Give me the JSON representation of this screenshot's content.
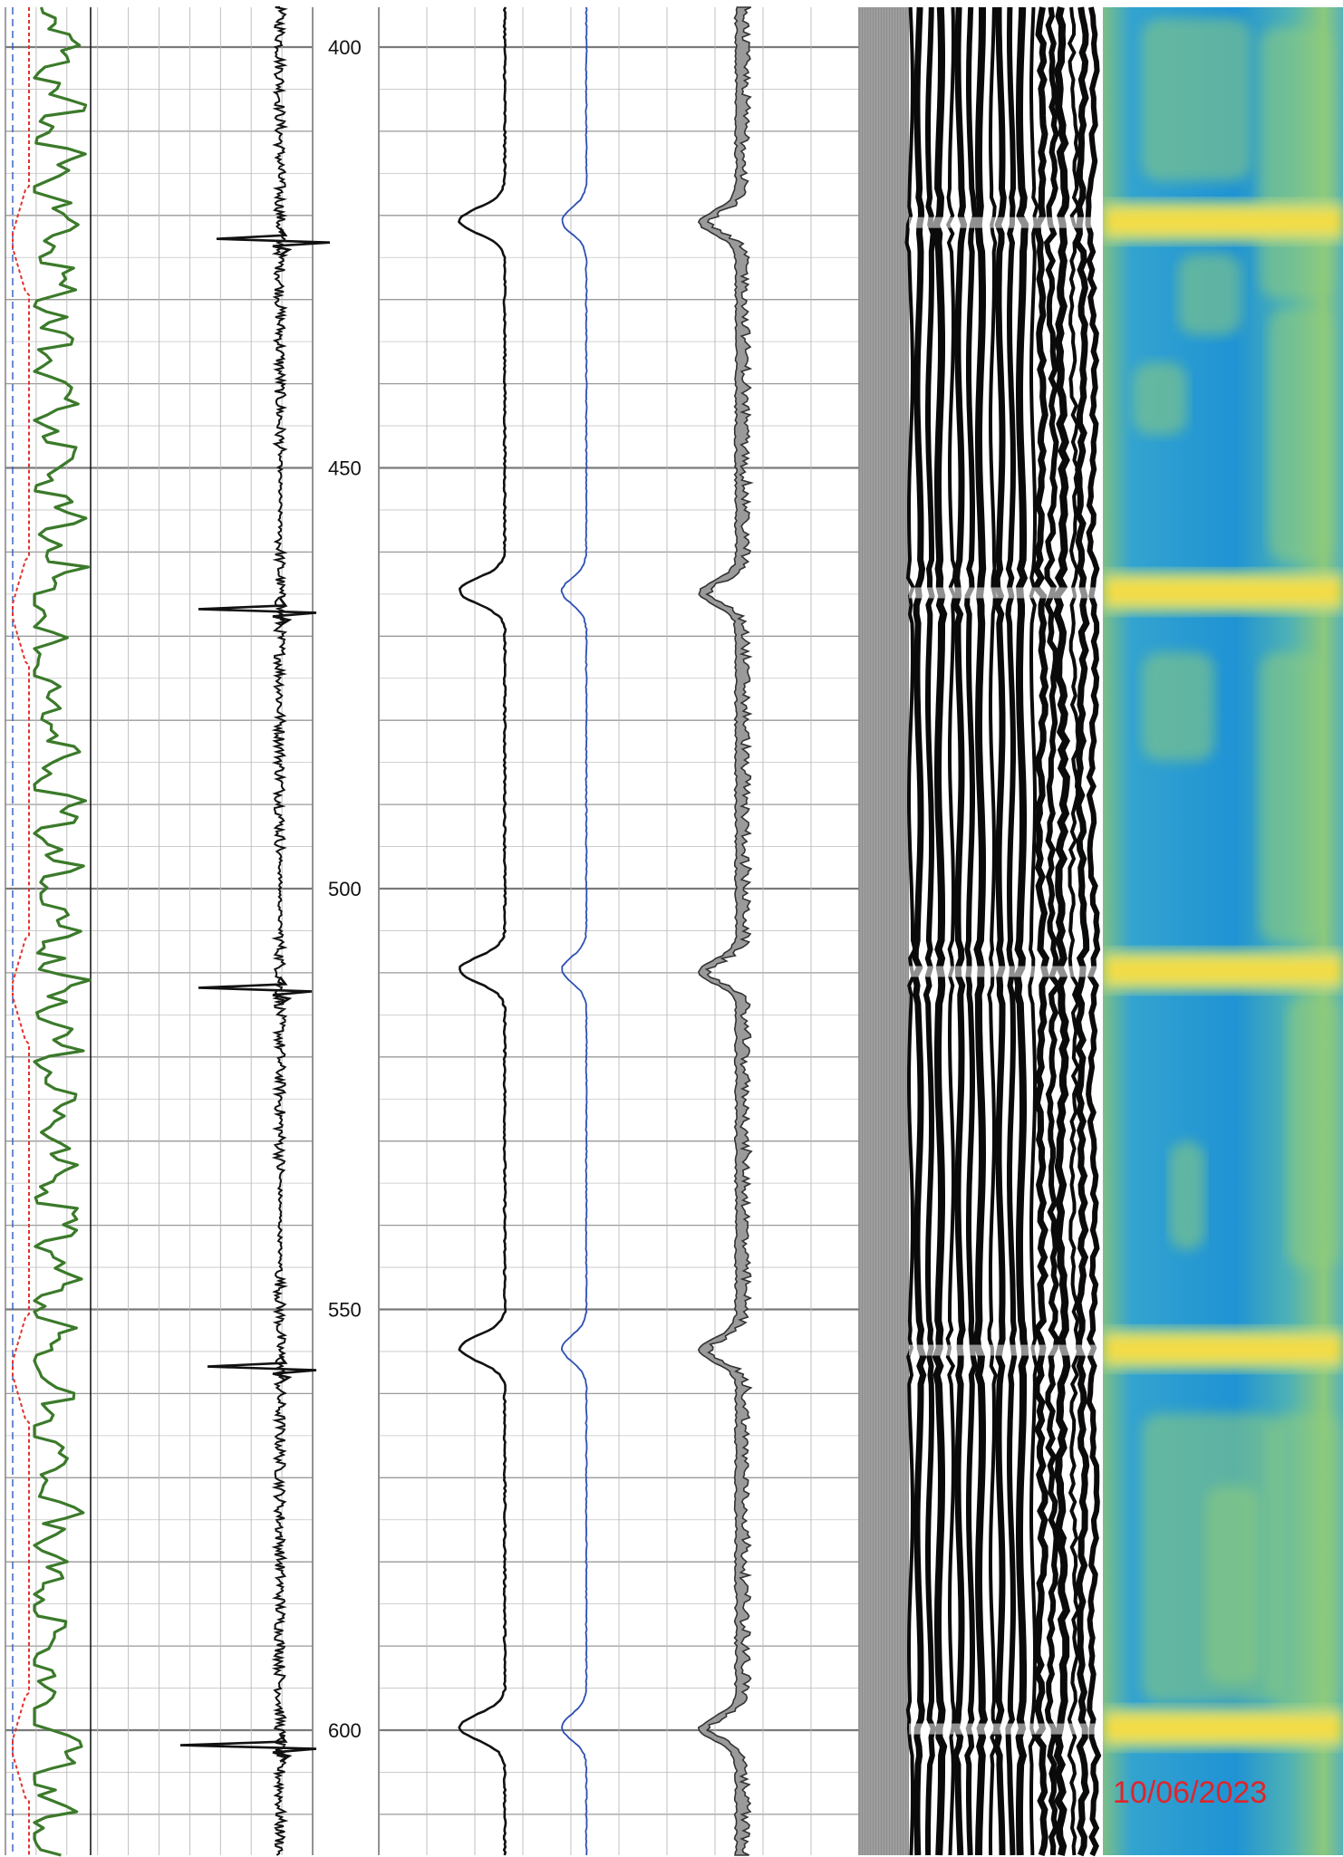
{
  "chart_data": {
    "type": "line",
    "depth_axis": {
      "range": [
        395,
        620
      ],
      "major_step": 50,
      "minor_step": 5,
      "tick_labels": [
        400,
        450,
        500,
        550,
        600
      ]
    },
    "collar_depths": [
      423,
      467,
      512,
      557,
      602
    ],
    "tracks": [
      {
        "id": "track1",
        "curves": [
          {
            "kind": "gamma",
            "color": "#3b7a2a",
            "scale": [
              0,
              100
            ]
          },
          {
            "kind": "collar-step",
            "color": "#e4312b",
            "dashed": true,
            "scale": [
              0,
              100
            ]
          },
          {
            "kind": "reference",
            "color": "#2c5bbf",
            "dashed": true,
            "scale": [
              0,
              100
            ]
          }
        ]
      },
      {
        "id": "track2",
        "curves": [
          {
            "kind": "ccl",
            "color": "#111111",
            "scale": [
              -10,
              10
            ]
          }
        ]
      },
      {
        "id": "track3",
        "curves": [
          {
            "kind": "amplitude",
            "color": "#111111",
            "scale": [
              0,
              100
            ]
          },
          {
            "kind": "amplitude-2",
            "color": "#2d4fb3",
            "scale": [
              0,
              100
            ]
          },
          {
            "kind": "amplitude-3",
            "color": "#333333",
            "scale": [
              0,
              100
            ]
          }
        ]
      },
      {
        "id": "track4",
        "curves": [
          {
            "kind": "vdl",
            "color": "#000000"
          }
        ]
      },
      {
        "id": "track5",
        "curves": [
          {
            "kind": "cement-map",
            "colors": [
              "#1e90d6",
              "#7ec08a",
              "#f2e03a"
            ]
          }
        ]
      }
    ],
    "date_stamp": "10/06/2023"
  }
}
